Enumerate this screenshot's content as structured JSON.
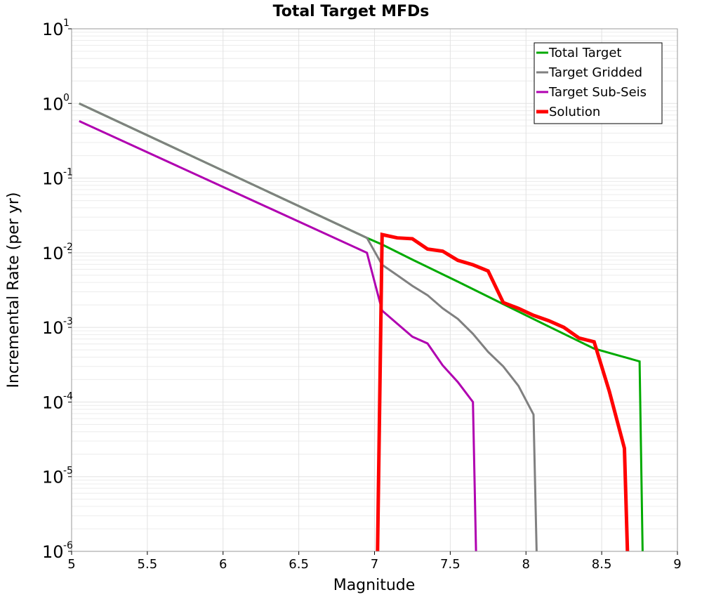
{
  "chart_data": {
    "type": "line",
    "title": "Total Target MFDs",
    "xlabel": "Magnitude",
    "ylabel": "Incremental Rate (per yr)",
    "xlim": [
      5,
      9
    ],
    "ylim": [
      1e-06,
      10
    ],
    "yscale": "log",
    "grid": true,
    "legend_position": "top-right",
    "x_ticks": [
      5,
      5.5,
      6,
      6.5,
      7,
      7.5,
      8,
      8.5,
      9
    ],
    "x_tick_labels": [
      "5",
      "5.5",
      "6",
      "6.5",
      "7",
      "7.5",
      "8",
      "8.5",
      "9"
    ],
    "y_ticks": [
      {
        "value": 10.0,
        "base": "10",
        "exp": "1"
      },
      {
        "value": 1.0,
        "base": "10",
        "exp": "0"
      },
      {
        "value": 0.1,
        "base": "10",
        "exp": "-1"
      },
      {
        "value": 0.01,
        "base": "10",
        "exp": "-2"
      },
      {
        "value": 0.001,
        "base": "10",
        "exp": "-3"
      },
      {
        "value": 0.0001,
        "base": "10",
        "exp": "-4"
      },
      {
        "value": 1e-05,
        "base": "10",
        "exp": "-5"
      },
      {
        "value": 1e-06,
        "base": "10",
        "exp": "-6"
      }
    ],
    "series": [
      {
        "name": "Total Target",
        "color": "#00aa00",
        "width": 3,
        "x": [
          5.05,
          6.95,
          7.05,
          7.25,
          7.55,
          7.85,
          8.15,
          8.45,
          8.75,
          8.77
        ],
        "y": [
          1.0,
          0.0158,
          0.0129,
          0.0081,
          0.0041,
          0.00205,
          0.00103,
          0.00052,
          0.00035,
          1e-06
        ]
      },
      {
        "name": "Target Gridded",
        "color": "#808080",
        "width": 3,
        "x": [
          5.05,
          6.95,
          7.05,
          7.15,
          7.25,
          7.35,
          7.45,
          7.55,
          7.65,
          7.75,
          7.85,
          7.95,
          8.05,
          8.07
        ],
        "y": [
          1.0,
          0.0158,
          0.0069,
          0.005,
          0.0036,
          0.0027,
          0.0018,
          0.0013,
          0.00082,
          0.00047,
          0.0003,
          0.000165,
          6.8e-05,
          1e-06
        ]
      },
      {
        "name": "Target Sub-Seis",
        "color": "#b000b0",
        "width": 3,
        "x": [
          5.05,
          6.95,
          7.05,
          7.15,
          7.25,
          7.35,
          7.45,
          7.55,
          7.65,
          7.67
        ],
        "y": [
          0.58,
          0.01,
          0.00168,
          0.00112,
          0.00075,
          0.00061,
          0.00031,
          0.000185,
          0.0001,
          1e-06
        ]
      },
      {
        "name": "Solution",
        "color": "#ff0000",
        "width": 5,
        "x": [
          7.02,
          7.05,
          7.15,
          7.25,
          7.35,
          7.45,
          7.55,
          7.65,
          7.75,
          7.85,
          7.95,
          8.05,
          8.15,
          8.25,
          8.35,
          8.45,
          8.55,
          8.65,
          8.67
        ],
        "y": [
          1e-06,
          0.0175,
          0.0158,
          0.0154,
          0.0112,
          0.0105,
          0.0079,
          0.0069,
          0.0057,
          0.00215,
          0.0018,
          0.00145,
          0.00123,
          0.001,
          0.00072,
          0.00064,
          0.00014,
          2.4e-05,
          1e-06
        ]
      }
    ]
  }
}
